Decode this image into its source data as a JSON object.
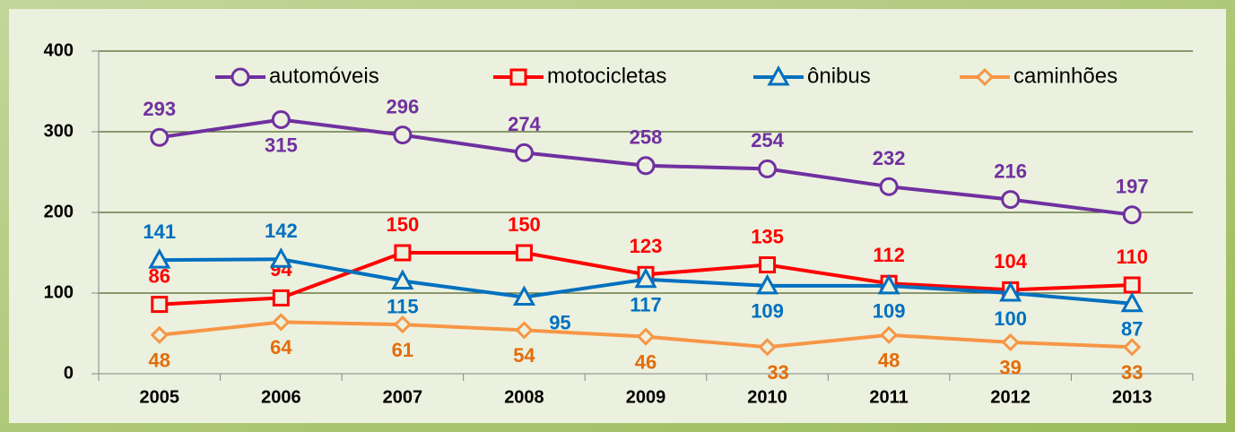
{
  "chart_data": {
    "type": "line",
    "categories": [
      "2005",
      "2006",
      "2007",
      "2008",
      "2009",
      "2010",
      "2011",
      "2012",
      "2013"
    ],
    "series": [
      {
        "name": "automóveis",
        "color": "#7030a0",
        "marker": "circle",
        "values": [
          293,
          315,
          296,
          274,
          258,
          254,
          232,
          216,
          197
        ]
      },
      {
        "name": "motocicletas",
        "color": "#ff0000",
        "marker": "square",
        "values": [
          86,
          94,
          150,
          150,
          123,
          135,
          112,
          104,
          110
        ]
      },
      {
        "name": "ônibus",
        "color": "#0070c0",
        "marker": "triangle",
        "values": [
          141,
          142,
          115,
          95,
          117,
          109,
          109,
          100,
          87
        ]
      },
      {
        "name": "caminhões",
        "color": "#f79646",
        "marker": "diamond",
        "values": [
          48,
          64,
          61,
          54,
          46,
          33,
          48,
          39,
          33
        ]
      }
    ],
    "ylim": [
      0,
      400
    ],
    "yticks": [
      0,
      100,
      200,
      300,
      400
    ],
    "grid": true,
    "legend": "top"
  }
}
